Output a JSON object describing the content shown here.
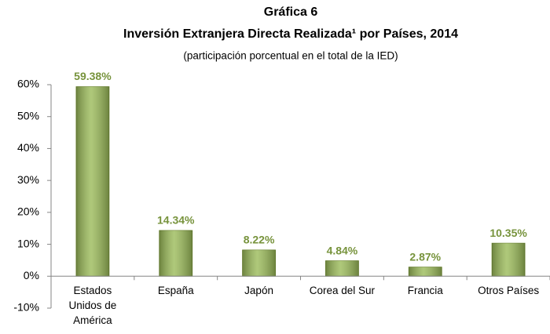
{
  "chart_data": {
    "type": "bar",
    "title": "Gráfica 6",
    "subtitle": "Inversión Extranjera Directa Realizada¹ por Países, 2014",
    "note": "(participación porcentual en el total de la IED)",
    "categories": [
      "Estados Unidos de América",
      "España",
      "Japón",
      "Corea del Sur",
      "Francia",
      "Otros Países"
    ],
    "values": [
      59.38,
      14.34,
      8.22,
      4.84,
      2.87,
      10.35
    ],
    "value_labels": [
      "59.38%",
      "14.34%",
      "8.22%",
      "4.84%",
      "2.87%",
      "10.35%"
    ],
    "color": "#9bbb59",
    "label_color": "#77933c",
    "ylim": [
      -10,
      60
    ],
    "yticks": [
      {
        "value": -10,
        "label": "-10%"
      },
      {
        "value": 0,
        "label": "0%"
      },
      {
        "value": 10,
        "label": "10%"
      },
      {
        "value": 20,
        "label": "20%"
      },
      {
        "value": 30,
        "label": "30%"
      },
      {
        "value": 40,
        "label": "40%"
      },
      {
        "value": 50,
        "label": "50%"
      },
      {
        "value": 60,
        "label": "60%"
      }
    ],
    "grid": false
  }
}
